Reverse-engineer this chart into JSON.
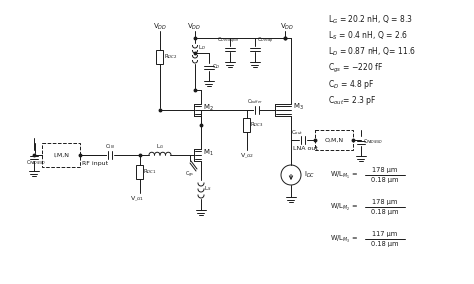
{
  "bg_color": "#ffffff",
  "line_color": "#1a1a1a",
  "figsize": [
    4.74,
    2.84
  ],
  "dpi": 100,
  "annotations": [
    "L$_G$ = 20.2 nH, Q = 8.3",
    "L$_S$ = 0.4 nH, Q = 2.6",
    "L$_D$ = 0.87 nH, Q= 11.6",
    "C$_{gs}$ = −220 fF",
    "C$_D$ = 4.8 pF",
    "C$_{out}$= 2.3 pF"
  ],
  "wl_data": [
    [
      "W/L$_{M_1}$",
      "178 μm",
      "0.18 μm"
    ],
    [
      "W/L$_{M_2}$",
      "178 μm",
      "0.18 μm"
    ],
    [
      "W/L$_{M_3}$",
      "117 μm",
      "0.18 μm"
    ]
  ]
}
